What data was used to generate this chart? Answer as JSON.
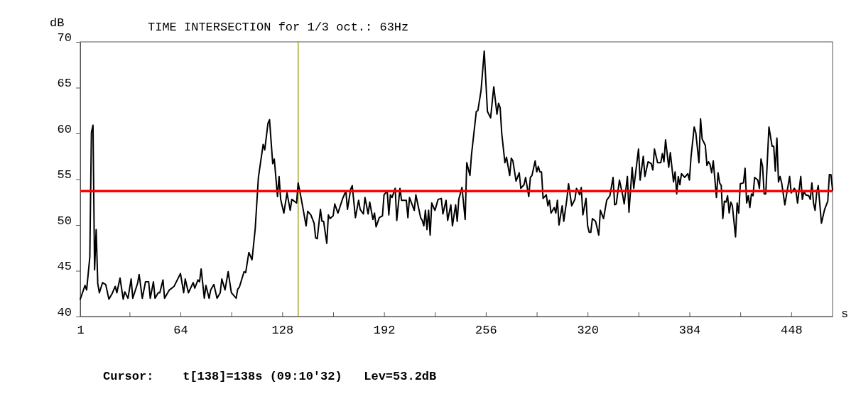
{
  "chart_data": {
    "type": "line",
    "title": "TIME INTERSECTION for 1/3 oct.: 63Hz",
    "xlabel": "s",
    "ylabel": "dB",
    "annotations": [
      "Cursor:    t[138]=138s (09:10'32)   Lev=53.2dB"
    ],
    "xlim": [
      1,
      474
    ],
    "ylim": [
      40,
      70
    ],
    "xticks": [
      1,
      {
        "value": 32,
        "label": null
      },
      64,
      {
        "value": 96,
        "label": null
      },
      128,
      {
        "value": 160,
        "label": null
      },
      192,
      {
        "value": 224,
        "label": null
      },
      256,
      {
        "value": 288,
        "label": null
      },
      320,
      {
        "value": 352,
        "label": null
      },
      384,
      {
        "value": 416,
        "label": null
      },
      448
    ],
    "yticks": [
      40,
      45,
      50,
      55,
      60,
      65,
      70
    ],
    "grid": false,
    "marker": "none",
    "line_style": "solid",
    "ref_lines": [
      {
        "axis": "y",
        "value": 53.7,
        "color": "#ff0000"
      },
      {
        "axis": "x",
        "value": 138,
        "color": "#999900"
      }
    ],
    "series": [
      {
        "color": "#000000",
        "x": [
          1,
          4,
          5,
          7,
          8,
          9,
          10,
          11,
          12,
          13,
          15,
          17,
          19,
          21,
          23,
          24,
          26,
          28,
          29,
          31,
          33,
          34,
          37,
          38,
          40,
          42,
          44,
          45,
          47,
          48,
          50,
          51,
          53,
          54,
          57,
          60,
          64,
          66,
          67,
          69,
          72,
          73,
          75,
          76,
          77,
          79,
          80,
          82,
          83,
          85,
          87,
          89,
          90,
          92,
          94,
          96,
          99,
          100,
          101,
          104,
          105,
          107,
          109,
          111,
          113,
          116,
          117,
          119,
          120,
          122,
          123,
          125,
          126,
          127,
          129,
          131,
          133,
          134,
          137,
          138,
          140,
          143,
          144,
          146,
          148,
          149,
          150,
          152,
          153,
          154,
          156,
          157,
          158,
          160,
          161,
          163,
          166,
          168,
          169,
          171,
          172,
          174,
          176,
          177,
          179,
          180,
          182,
          183,
          185,
          186,
          187,
          189,
          191,
          192,
          194,
          195,
          196,
          197,
          199,
          200,
          202,
          203,
          206,
          207,
          208,
          211,
          212,
          215,
          216,
          217,
          218,
          219,
          220,
          221,
          222,
          224,
          226,
          228,
          229,
          231,
          232,
          234,
          235,
          237,
          238,
          239,
          241,
          243,
          244,
          246,
          247,
          250,
          251,
          253,
          255,
          257,
          259,
          261,
          263,
          264,
          265,
          266,
          268,
          269,
          271,
          272,
          273,
          275,
          277,
          278,
          280,
          281,
          283,
          284,
          285,
          287,
          288,
          289,
          290,
          291,
          292,
          294,
          295,
          296,
          297,
          299,
          300,
          301,
          302,
          304,
          305,
          307,
          308,
          310,
          312,
          313,
          315,
          316,
          317,
          319,
          320,
          321,
          322,
          323,
          325,
          327,
          328,
          330,
          332,
          334,
          336,
          337,
          338,
          340,
          342,
          343,
          345,
          346,
          348,
          349,
          352,
          353,
          355,
          356,
          358,
          360,
          361,
          362,
          364,
          366,
          367,
          368,
          369,
          371,
          372,
          374,
          375,
          376,
          377,
          378,
          379,
          381,
          383,
          384,
          385,
          387,
          388,
          390,
          391,
          392,
          394,
          395,
          396,
          397,
          398,
          399,
          401,
          402,
          403,
          404,
          405,
          406,
          407,
          408,
          409,
          410,
          411,
          413,
          414,
          415,
          416,
          418,
          419,
          420,
          421,
          422,
          423,
          424,
          425,
          427,
          428,
          429,
          430,
          431,
          432,
          434,
          436,
          437,
          438,
          439,
          440,
          441,
          442,
          444,
          447,
          448,
          450,
          451,
          452,
          454,
          455,
          456,
          457,
          459,
          460,
          461,
          462,
          463,
          464,
          465,
          467,
          469,
          471,
          472,
          473,
          474
        ],
        "values": [
          41.9,
          43.4,
          42.9,
          46.5,
          60.1,
          60.9,
          45.1,
          49.5,
          43.6,
          42.6,
          43.7,
          43.5,
          41.9,
          42.5,
          43.3,
          42.6,
          44.2,
          41.9,
          42.7,
          42.0,
          44.1,
          42.0,
          43.6,
          44.6,
          42.0,
          43.8,
          43.8,
          42.0,
          43.8,
          42.0,
          42.6,
          42.6,
          44.0,
          42.0,
          42.9,
          43.3,
          44.7,
          42.6,
          44.1,
          42.6,
          43.7,
          43.1,
          44.0,
          43.8,
          45.2,
          42.0,
          43.4,
          42.0,
          42.9,
          43.5,
          42.0,
          42.6,
          44.1,
          42.9,
          44.9,
          42.6,
          42.0,
          43.0,
          43.2,
          44.9,
          44.8,
          47.0,
          46.2,
          49.6,
          55.2,
          58.8,
          58.2,
          61.1,
          61.5,
          56.7,
          57.2,
          53.1,
          55.3,
          52.8,
          51.3,
          53.5,
          51.6,
          52.8,
          52.4,
          54.6,
          52.8,
          49.9,
          51.5,
          51.1,
          50.2,
          48.6,
          48.5,
          51.7,
          50.4,
          50.4,
          48.0,
          51.1,
          50.7,
          51.0,
          52.3,
          51.3,
          52.9,
          53.7,
          51.7,
          53.9,
          54.3,
          50.8,
          52.7,
          51.7,
          51.2,
          53.0,
          51.2,
          52.5,
          50.6,
          51.3,
          49.8,
          50.8,
          51.0,
          53.3,
          53.7,
          51.1,
          53.3,
          53.0,
          54.0,
          50.5,
          54.0,
          52.7,
          52.7,
          50.8,
          53.0,
          51.6,
          53.3,
          50.8,
          50.5,
          49.9,
          51.6,
          49.5,
          51.6,
          48.9,
          52.4,
          51.6,
          52.8,
          52.9,
          51.2,
          52.7,
          50.5,
          52.2,
          49.9,
          52.2,
          50.4,
          52.8,
          54.1,
          50.6,
          56.8,
          55.4,
          57.7,
          62.4,
          62.5,
          64.7,
          69.0,
          62.4,
          61.7,
          65.1,
          62.1,
          63.3,
          62.8,
          60.0,
          56.8,
          57.4,
          55.4,
          57.3,
          57.0,
          54.8,
          55.7,
          54.0,
          54.4,
          55.2,
          53.1,
          55.2,
          55.4,
          57.0,
          55.8,
          56.4,
          55.8,
          55.8,
          52.9,
          53.3,
          52.1,
          52.7,
          51.3,
          51.9,
          51.3,
          52.7,
          50.0,
          52.1,
          50.4,
          52.9,
          54.5,
          52.1,
          52.8,
          54.0,
          53.3,
          54.1,
          51.1,
          52.9,
          49.9,
          49.2,
          49.2,
          50.7,
          50.4,
          48.9,
          51.6,
          50.7,
          52.7,
          53.2,
          55.2,
          52.2,
          52.3,
          54.9,
          53.3,
          52.3,
          55.3,
          51.4,
          56.3,
          54.0,
          58.3,
          54.9,
          57.5,
          55.3,
          56.9,
          56.7,
          56.0,
          58.3,
          56.8,
          56.8,
          57.8,
          56.9,
          59.3,
          56.3,
          57.9,
          54.7,
          55.8,
          53.4,
          55.3,
          54.4,
          55.6,
          55.2,
          55.6,
          54.9,
          57.4,
          60.7,
          60.1,
          56.8,
          61.6,
          59.4,
          58.7,
          56.5,
          56.9,
          56.6,
          55.7,
          57.0,
          53.0,
          55.7,
          54.6,
          54.3,
          50.7,
          52.6,
          52.5,
          53.2,
          51.3,
          52.5,
          52.1,
          48.7,
          52.4,
          51.3,
          54.5,
          54.6,
          56.2,
          52.4,
          53.2,
          51.9,
          53.4,
          53.2,
          55.2,
          54.9,
          54.0,
          57.2,
          56.4,
          53.4,
          53.4,
          60.7,
          58.6,
          58.6,
          55.9,
          59.5,
          54.7,
          55.3,
          54.6,
          52.2,
          55.3,
          53.5,
          54.0,
          53.7,
          52.4,
          55.3,
          52.8,
          53.7,
          53.3,
          53.2,
          52.8,
          54.6,
          52.4,
          51.6,
          53.5,
          54.3,
          50.2,
          51.7,
          52.6,
          55.5,
          55.5,
          53.8
        ]
      }
    ]
  }
}
